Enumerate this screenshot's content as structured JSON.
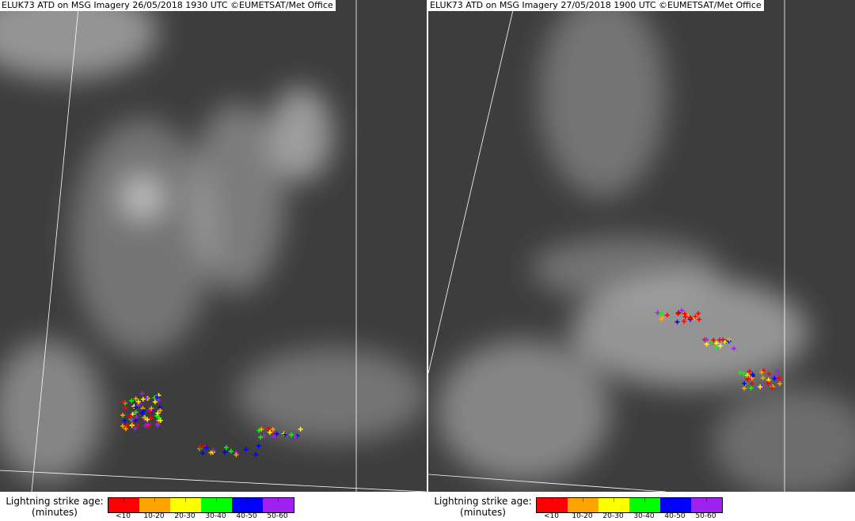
{
  "panels": [
    {
      "title": "ELUK73 ATD on MSG Imagery 26/05/2018 1930 UTC ©EUMETSAT/Met Office",
      "legend": {
        "label_line1": "Lightning strike age:",
        "label_line2": "(minutes)"
      }
    },
    {
      "title": "ELUK73 ATD on MSG Imagery 27/05/2018 1900 UTC ©EUMETSAT/Met Office",
      "legend": {
        "label_line1": "Lightning strike age:",
        "label_line2": "(minutes)"
      }
    }
  ],
  "legend_scale": [
    {
      "label": "<10",
      "color": "#ff0000"
    },
    {
      "label": "10-20",
      "color": "#ffa500"
    },
    {
      "label": "20-30",
      "color": "#ffff00"
    },
    {
      "label": "30-40",
      "color": "#00ff00"
    },
    {
      "label": "40-50",
      "color": "#0000ff"
    },
    {
      "label": "50-60",
      "color": "#a020f0"
    }
  ]
}
